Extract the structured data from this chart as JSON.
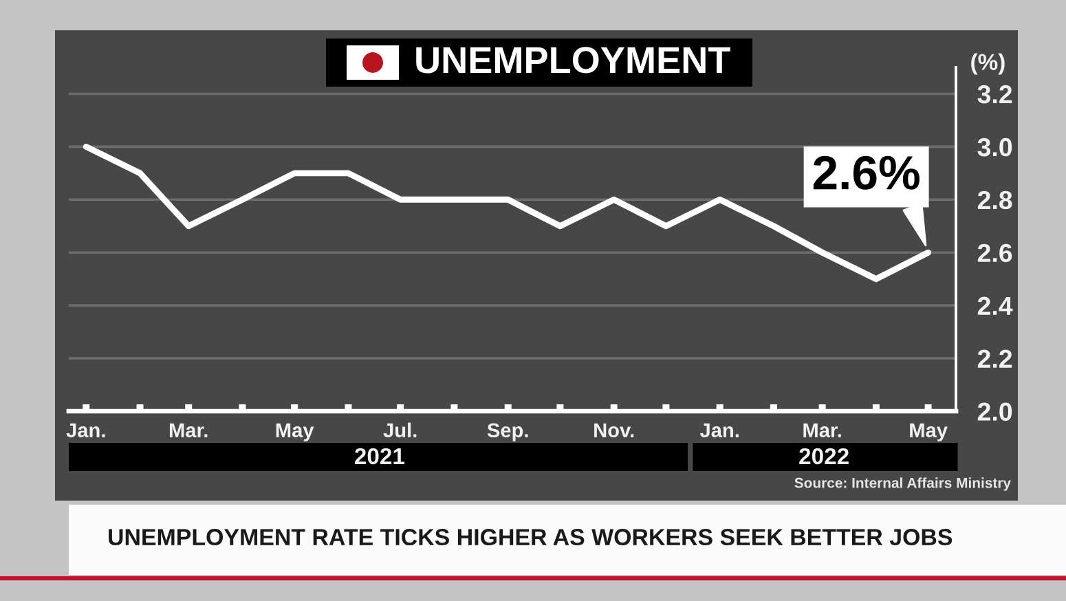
{
  "chart_data": {
    "type": "line",
    "title": "UNEMPLOYMENT",
    "ylabel": "(%)",
    "x": [
      "2021-01",
      "2021-02",
      "2021-03",
      "2021-04",
      "2021-05",
      "2021-06",
      "2021-07",
      "2021-08",
      "2021-09",
      "2021-10",
      "2021-11",
      "2021-12",
      "2022-01",
      "2022-02",
      "2022-03",
      "2022-04",
      "2022-05"
    ],
    "series": [
      {
        "color": "#ffffff",
        "values": [
          3.0,
          2.9,
          2.7,
          2.8,
          2.9,
          2.9,
          2.8,
          2.8,
          2.8,
          2.7,
          2.8,
          2.7,
          2.8,
          2.7,
          2.6,
          2.5,
          2.6
        ]
      }
    ],
    "xlim": [
      "2020-12-22",
      "2022-05-17"
    ],
    "xticks": [
      {
        "value": "2021-01",
        "label": "Jan."
      },
      {
        "value": "2021-02",
        "label": null
      },
      {
        "value": "2021-03",
        "label": "Mar."
      },
      {
        "value": "2021-04",
        "label": null
      },
      {
        "value": "2021-05",
        "label": "May"
      },
      {
        "value": "2021-06",
        "label": null
      },
      {
        "value": "2021-07",
        "label": "Jul."
      },
      {
        "value": "2021-08",
        "label": null
      },
      {
        "value": "2021-09",
        "label": "Sep."
      },
      {
        "value": "2021-10",
        "label": null
      },
      {
        "value": "2021-11",
        "label": "Nov."
      },
      {
        "value": "2021-12",
        "label": null
      },
      {
        "value": "2022-01",
        "label": "Jan."
      },
      {
        "value": "2022-02",
        "label": null
      },
      {
        "value": "2022-03",
        "label": "Mar."
      },
      {
        "value": "2022-04",
        "label": null
      },
      {
        "value": "2022-05",
        "label": "May"
      }
    ],
    "ylim": [
      2.0,
      3.3
    ],
    "yticks": [
      {
        "value": 2,
        "label": "2.0"
      },
      2.2,
      2.4,
      2.6,
      2.8,
      {
        "value": 3,
        "label": "3.0"
      },
      3.2
    ],
    "x2lim": [
      "2020-12-22",
      "2022-05-17"
    ],
    "x2ticks": [
      {
        "value": "2021-06-19",
        "label": "2021"
      },
      {
        "value": "2022-03-02",
        "label": "2022"
      }
    ],
    "grid": "y",
    "line_style": "solid",
    "annotations": [
      {
        "text": "2.6%",
        "x": "2022-05",
        "y": 2.6
      },
      "Source: Internal Affairs Ministry",
      "UNEMPLOYMENT RATE TICKS HIGHER AS WORKERS SEEK BETTER JOBS"
    ]
  }
}
